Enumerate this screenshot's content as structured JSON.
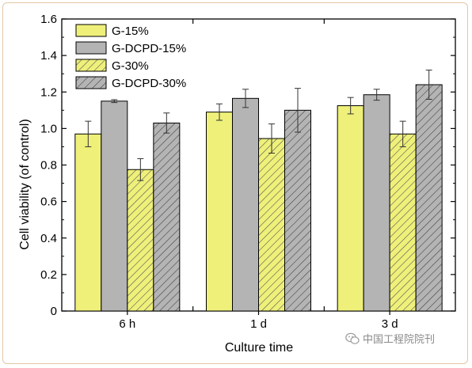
{
  "chart_data": {
    "type": "bar",
    "xlabel": "Culture time",
    "ylabel": "Cell viability (of control)",
    "categories": [
      "6 h",
      "1 d",
      "3 d"
    ],
    "ylim": [
      0,
      1.6
    ],
    "yticks": [
      "0",
      "0.2",
      "0.4",
      "0.6",
      "0.8",
      "1.0",
      "1.2",
      "1.4",
      "1.6"
    ],
    "legend_placement": "top-left",
    "series": [
      {
        "name": "G-15%",
        "values": [
          0.97,
          1.09,
          1.125
        ],
        "errors": [
          0.07,
          0.045,
          0.045
        ],
        "color": "#eef07a",
        "hatch": false
      },
      {
        "name": "G-DCPD-15%",
        "values": [
          1.15,
          1.165,
          1.185
        ],
        "errors": [
          0.008,
          0.05,
          0.03
        ],
        "color": "#b4b4b4",
        "hatch": false
      },
      {
        "name": "G-30%",
        "values": [
          0.775,
          0.945,
          0.97
        ],
        "errors": [
          0.06,
          0.08,
          0.07
        ],
        "color": "#eef07a",
        "hatch": true
      },
      {
        "name": "G-DCPD-30%",
        "values": [
          1.03,
          1.1,
          1.24
        ],
        "errors": [
          0.055,
          0.12,
          0.08
        ],
        "color": "#b4b4b4",
        "hatch": true
      }
    ]
  },
  "watermark": {
    "text": "中国工程院院刊",
    "icon": "wechat-icon"
  }
}
